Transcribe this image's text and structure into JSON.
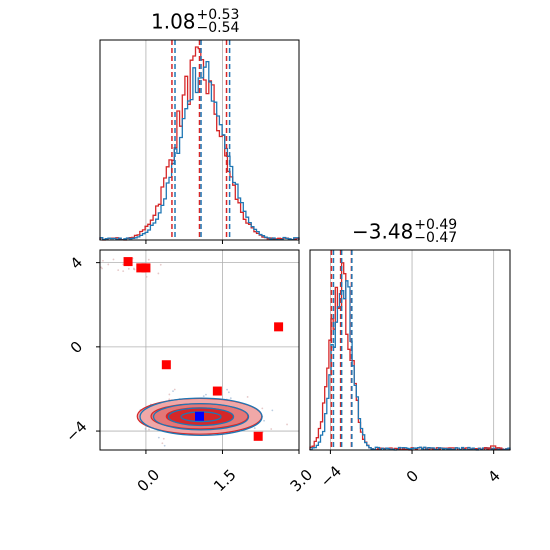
{
  "chart_data": [
    {
      "panel": "top-left",
      "type": "histogram",
      "title": {
        "value": "1.08",
        "upper": "+0.53",
        "lower": "−0.54"
      },
      "xlim": [
        -0.9,
        3.0
      ],
      "quantile_lines": {
        "blue": [
          0.57,
          1.08,
          1.64
        ],
        "red": [
          0.51,
          1.05,
          1.58
        ]
      },
      "series": [
        {
          "name": "",
          "color": "#1f77b4",
          "center": 1.1,
          "sigma": 0.44
        },
        {
          "name": "",
          "color": "#d62728",
          "center": 1.03,
          "sigma": 0.45
        }
      ]
    },
    {
      "panel": "bottom-right",
      "type": "histogram",
      "title": {
        "value": "−3.48",
        "upper": "+0.49",
        "lower": "−0.47"
      },
      "xlim": [
        -5.0,
        4.8
      ],
      "ticks": [
        "−4",
        "0",
        "4"
      ],
      "quantile_lines": {
        "blue": [
          -3.85,
          -3.45,
          -2.95
        ],
        "red": [
          -3.95,
          -3.5,
          -2.97
        ]
      },
      "series": [
        {
          "name": "",
          "color": "#1f77b4",
          "center": -3.4,
          "sigma": 0.45
        },
        {
          "name": "",
          "color": "#d62728",
          "center": -3.5,
          "sigma": 0.5
        }
      ]
    },
    {
      "panel": "bottom-left",
      "type": "scatter",
      "xlim": [
        -0.9,
        3.0
      ],
      "ylim": [
        -4.9,
        4.6
      ],
      "x_ticks": [
        "0.0",
        "1.5",
        "3.0"
      ],
      "y_ticks": [
        "−4",
        "0",
        "4"
      ],
      "contour_center": [
        1.05,
        -3.3
      ],
      "contour_widths": [
        [
          1.22,
          0.85
        ],
        [
          0.95,
          0.6
        ],
        [
          0.65,
          0.4
        ],
        [
          0.4,
          0.22
        ]
      ],
      "red_points": [
        [
          -0.35,
          4.05
        ],
        [
          -0.1,
          3.75
        ],
        [
          0.0,
          3.75
        ],
        [
          0.4,
          -0.85
        ],
        [
          2.6,
          0.95
        ],
        [
          1.4,
          -2.1
        ],
        [
          2.2,
          -4.25
        ]
      ],
      "blue_point": [
        1.05,
        -3.3
      ]
    }
  ],
  "colors": {
    "blue": "#1f77b4",
    "red": "#d62728",
    "fill_light": "#f0a8a8",
    "fill_mid": "#e47777",
    "fill_dark": "#d62728"
  }
}
